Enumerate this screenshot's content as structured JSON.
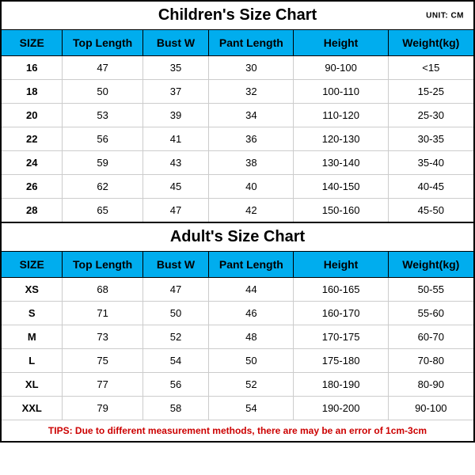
{
  "unit_label": "UNIT: CM",
  "header_bg": "#00adee",
  "colors": {
    "border_outer": "#000000",
    "border_header": "#000000",
    "border_cell": "#cccccc",
    "text": "#000000",
    "tips_color": "#cc0000",
    "background": "#ffffff"
  },
  "typography": {
    "title_fontsize": 20,
    "header_fontsize": 14,
    "cell_fontsize": 13,
    "tips_fontsize": 12,
    "font_family": "Arial"
  },
  "column_widths_pct": [
    13,
    17,
    14,
    18,
    20,
    18
  ],
  "children": {
    "title": "Children's Size Chart",
    "columns": [
      "SIZE",
      "Top Length",
      "Bust W",
      "Pant Length",
      "Height",
      "Weight(kg)"
    ],
    "rows": [
      [
        "16",
        "47",
        "35",
        "30",
        "90-100",
        "<15"
      ],
      [
        "18",
        "50",
        "37",
        "32",
        "100-110",
        "15-25"
      ],
      [
        "20",
        "53",
        "39",
        "34",
        "110-120",
        "25-30"
      ],
      [
        "22",
        "56",
        "41",
        "36",
        "120-130",
        "30-35"
      ],
      [
        "24",
        "59",
        "43",
        "38",
        "130-140",
        "35-40"
      ],
      [
        "26",
        "62",
        "45",
        "40",
        "140-150",
        "40-45"
      ],
      [
        "28",
        "65",
        "47",
        "42",
        "150-160",
        "45-50"
      ]
    ]
  },
  "adult": {
    "title": "Adult's Size Chart",
    "columns": [
      "SIZE",
      "Top Length",
      "Bust W",
      "Pant Length",
      "Height",
      "Weight(kg)"
    ],
    "rows": [
      [
        "XS",
        "68",
        "47",
        "44",
        "160-165",
        "50-55"
      ],
      [
        "S",
        "71",
        "50",
        "46",
        "160-170",
        "55-60"
      ],
      [
        "M",
        "73",
        "52",
        "48",
        "170-175",
        "60-70"
      ],
      [
        "L",
        "75",
        "54",
        "50",
        "175-180",
        "70-80"
      ],
      [
        "XL",
        "77",
        "56",
        "52",
        "180-190",
        "80-90"
      ],
      [
        "XXL",
        "79",
        "58",
        "54",
        "190-200",
        "90-100"
      ]
    ]
  },
  "tips": "TIPS: Due to different measurement methods, there are may be an error of 1cm-3cm"
}
